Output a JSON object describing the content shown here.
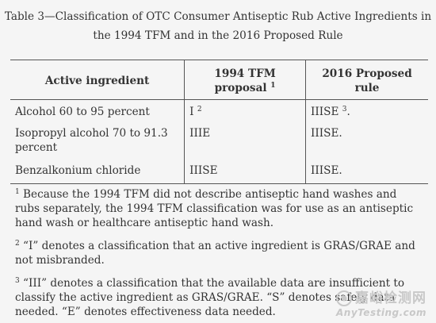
{
  "caption": {
    "line1": "Table 3—Classification of OTC Consumer Antiseptic Rub Active Ingredients in",
    "line2": "the 1994 TFM and in the 2016 Proposed Rule"
  },
  "table": {
    "headers": [
      "Active ingredient",
      "1994 TFM proposal",
      "2016 Proposed rule"
    ],
    "header_sup": "1",
    "rows": [
      {
        "ingredient": "Alcohol 60 to 95 percent",
        "tfm1994": "I",
        "tfm1994_sup": "2",
        "rule2016": "IIISE",
        "rule2016_sup": "3",
        "rule2016_tail": "."
      },
      {
        "ingredient": "Isopropyl alcohol 70 to 91.3 percent",
        "tfm1994": "IIIE",
        "rule2016": "IIISE."
      },
      {
        "ingredient": "Benzalkonium chloride",
        "tfm1994": "IIISE",
        "rule2016": "IIISE."
      }
    ]
  },
  "footnotes": [
    {
      "mark": "1",
      "text": " Because the 1994 TFM did not describe antiseptic hand washes and rubs separately, the 1994 TFM classification was for use as an antiseptic hand wash or healthcare antiseptic hand wash."
    },
    {
      "mark": "2",
      "text": " “I” denotes a classification that an active ingredient is GRAS/GRAE and not misbranded."
    },
    {
      "mark": "3",
      "text": " “III” denotes a classification that the available data are insufficient to classify the active ingredient as GRAS/GRAE. “S” denotes safety data needed. “E” denotes effectiveness data needed."
    }
  ],
  "watermark": {
    "cn": "嘉峪检测网",
    "en": "AnyTesting.com"
  }
}
